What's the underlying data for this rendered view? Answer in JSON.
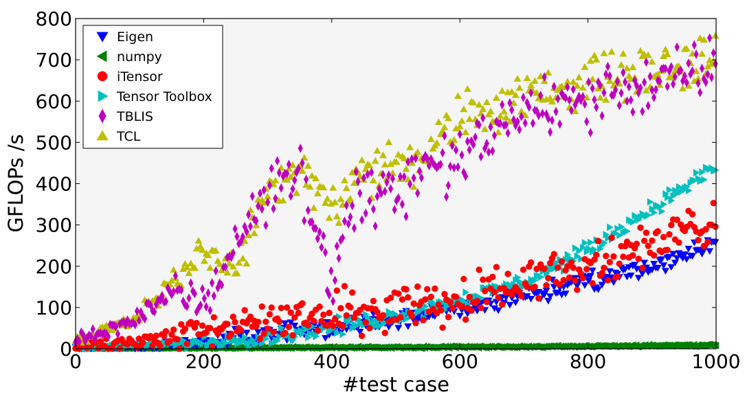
{
  "chart_data": {
    "type": "scatter",
    "title": "",
    "xlabel": "#test case",
    "ylabel": "GFLOPs /s",
    "xlim": [
      0,
      1000
    ],
    "ylim": [
      0,
      800
    ],
    "x_ticks": [
      0,
      200,
      400,
      600,
      800,
      1000
    ],
    "y_ticks": [
      0,
      100,
      200,
      300,
      400,
      500,
      600,
      700,
      800
    ],
    "grid": false,
    "plot_background": "#f5f5f5",
    "legend_position": "top-left",
    "series": [
      {
        "name": "Eigen",
        "marker": "triangle-down",
        "color": "#0000ff",
        "anchors": [
          [
            0,
            2
          ],
          [
            100,
            5
          ],
          [
            200,
            15
          ],
          [
            300,
            35
          ],
          [
            400,
            50
          ],
          [
            500,
            70
          ],
          [
            600,
            95
          ],
          [
            700,
            130
          ],
          [
            800,
            160
          ],
          [
            900,
            200
          ],
          [
            1000,
            255
          ]
        ],
        "spread": 22
      },
      {
        "name": "numpy",
        "marker": "triangle-left",
        "color": "#008000",
        "anchors": [
          [
            0,
            1
          ],
          [
            200,
            2
          ],
          [
            400,
            3
          ],
          [
            600,
            4
          ],
          [
            800,
            6
          ],
          [
            1000,
            9
          ]
        ],
        "spread": 2
      },
      {
        "name": "iTensor",
        "marker": "circle",
        "color": "#ff0000",
        "anchors": [
          [
            0,
            5
          ],
          [
            100,
            15
          ],
          [
            200,
            40
          ],
          [
            300,
            70
          ],
          [
            400,
            80
          ],
          [
            500,
            100
          ],
          [
            600,
            120
          ],
          [
            700,
            160
          ],
          [
            800,
            200
          ],
          [
            900,
            260
          ],
          [
            1000,
            310
          ]
        ],
        "spread": 55
      },
      {
        "name": "Tensor Toolbox",
        "marker": "triangle-right",
        "color": "#00bfbf",
        "anchors": [
          [
            0,
            1
          ],
          [
            200,
            15
          ],
          [
            300,
            30
          ],
          [
            400,
            50
          ],
          [
            500,
            80
          ],
          [
            600,
            120
          ],
          [
            700,
            160
          ],
          [
            800,
            240
          ],
          [
            900,
            340
          ],
          [
            1000,
            440
          ]
        ],
        "spread": 18
      },
      {
        "name": "TBLIS",
        "marker": "diamond",
        "color": "#bf00bf",
        "anchors": [
          [
            0,
            20
          ],
          [
            100,
            70
          ],
          [
            150,
            150
          ],
          [
            200,
            110
          ],
          [
            250,
            250
          ],
          [
            300,
            380
          ],
          [
            350,
            420
          ],
          [
            400,
            160
          ],
          [
            420,
            330
          ],
          [
            500,
            390
          ],
          [
            550,
            420
          ],
          [
            600,
            460
          ],
          [
            650,
            520
          ],
          [
            700,
            580
          ],
          [
            800,
            600
          ],
          [
            850,
            640
          ],
          [
            900,
            630
          ],
          [
            1000,
            690
          ]
        ],
        "spread": 70
      },
      {
        "name": "TCL",
        "marker": "triangle-up",
        "color": "#bfbf00",
        "anchors": [
          [
            0,
            15
          ],
          [
            100,
            80
          ],
          [
            200,
            240
          ],
          [
            250,
            200
          ],
          [
            300,
            380
          ],
          [
            350,
            440
          ],
          [
            400,
            330
          ],
          [
            450,
            430
          ],
          [
            500,
            440
          ],
          [
            550,
            470
          ],
          [
            600,
            560
          ],
          [
            700,
            610
          ],
          [
            800,
            650
          ],
          [
            900,
            670
          ],
          [
            1000,
            700
          ]
        ],
        "spread": 60
      }
    ]
  }
}
